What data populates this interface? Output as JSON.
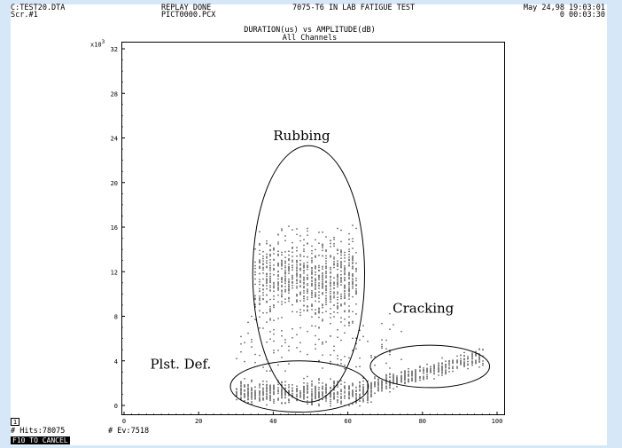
{
  "header": {
    "file": "C:TEST20.DTA",
    "screen": "Scr.#1",
    "status": "REPLAY DONE",
    "pict_file": "PICT0000.PCX",
    "test_title": "7075-T6 IN LAB FATIGUE TEST",
    "datetime": "May 24,98 19:03:01",
    "elapsed": "0 00:03:30"
  },
  "footer": {
    "box_number": "1",
    "hits_label": "# Hits:78075",
    "events_label": "# Ev:7518",
    "cancel_label": "F10 TO CANCEL"
  },
  "chart_data": {
    "type": "scatter",
    "title": "DURATION(us) vs AMPLITUDE(dB)",
    "subtitle": "All Channels",
    "xlabel": "",
    "ylabel": "",
    "y_multiplier_label": "x10",
    "y_multiplier_exp": "3",
    "xlim": [
      0,
      100
    ],
    "ylim": [
      0,
      32
    ],
    "x_ticks": [
      0,
      20,
      40,
      60,
      80,
      100
    ],
    "y_ticks": [
      0,
      4,
      8,
      12,
      16,
      20,
      24,
      28,
      32
    ],
    "grid": false,
    "annotations": [
      {
        "text": "Rubbing",
        "x": 40,
        "y": 23.8
      },
      {
        "text": "Cracking",
        "x": 72,
        "y": 8.3
      },
      {
        "text": "Plst. Def.",
        "x": 7,
        "y": 3.3
      }
    ],
    "regions": [
      {
        "name": "Rubbing",
        "cx": 49.5,
        "cy": 11.8,
        "rx": 15,
        "ry": 11.5
      },
      {
        "name": "Plst. Def.",
        "cx": 47,
        "cy": 1.7,
        "rx": 18.5,
        "ry": 2.3
      },
      {
        "name": "Cracking",
        "cx": 82,
        "cy": 3.5,
        "rx": 16,
        "ry": 1.9
      }
    ],
    "clusters": [
      {
        "name": "Rubbing",
        "x_range": [
          35,
          62
        ],
        "y_center": 11.5,
        "y_spread": 5.5,
        "count": 900
      },
      {
        "name": "Plst. Def.",
        "x_range": [
          30,
          66
        ],
        "y_center": 1.2,
        "y_spread": 1.4,
        "count": 700
      },
      {
        "name": "Cracking",
        "x_range": [
          65,
          96
        ],
        "y_center": 3.0,
        "y_spread": 1.0,
        "count": 450
      },
      {
        "name": "scatter",
        "x_range": [
          30,
          75
        ],
        "y_center": 5.0,
        "y_spread": 4.0,
        "count": 120
      }
    ]
  }
}
